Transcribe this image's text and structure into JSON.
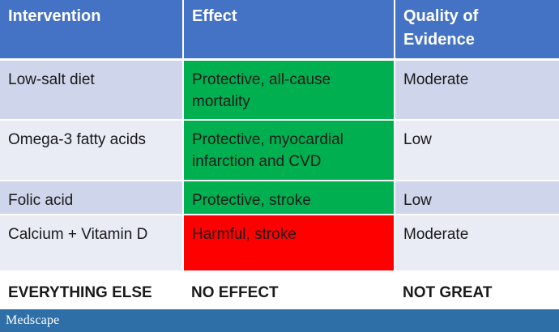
{
  "table": {
    "headers": {
      "intervention": "Intervention",
      "effect": "Effect",
      "quality": "Quality of Evidence"
    },
    "rows": [
      {
        "intervention": "Low-salt diet",
        "effect": "Protective, all-cause mortality",
        "effect_color": "#00b050",
        "quality": "Moderate"
      },
      {
        "intervention": "Omega-3 fatty acids",
        "effect": "Protective, myocardial infarction and CVD",
        "effect_color": "#00b050",
        "quality": "Low"
      },
      {
        "intervention": "Folic acid",
        "effect": "Protective, stroke",
        "effect_color": "#00b050",
        "quality": "Low"
      },
      {
        "intervention": "Calcium + Vitamin D",
        "effect": "Harmful, stroke",
        "effect_color": "#ff0000",
        "quality": "Moderate"
      },
      {
        "intervention": "EVERYTHING ELSE",
        "effect": "NO EFFECT",
        "quality": "NOT GREAT"
      }
    ]
  },
  "footer": {
    "logo_text": "Medscape",
    "bar_color": "#2f6fa8"
  },
  "colors": {
    "header_bg": "#4472c4",
    "row_band_dark": "#cfd5ea",
    "row_band_light": "#e9ebf5",
    "protective": "#00b050",
    "harmful": "#ff0000"
  }
}
